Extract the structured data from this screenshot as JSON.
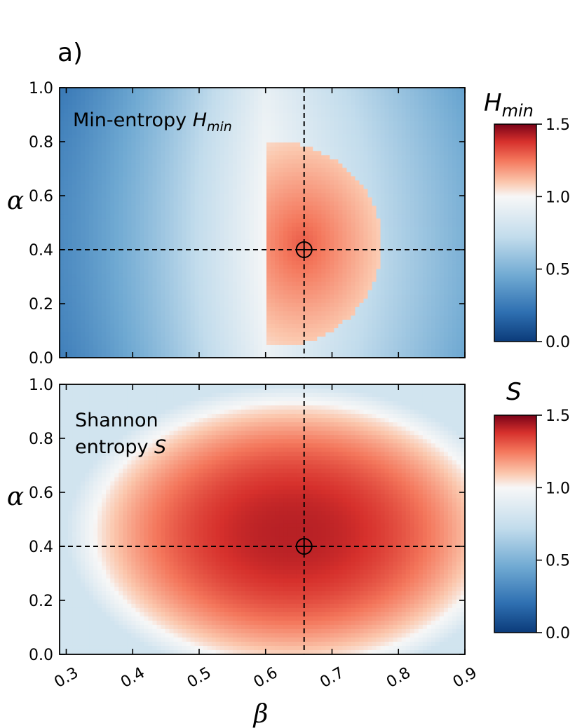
{
  "panel_label": "a)",
  "colorscale": {
    "stops": [
      {
        "v": 0.0,
        "c": "#0b3b7a"
      },
      {
        "v": 0.2,
        "c": "#2e6fb1"
      },
      {
        "v": 0.45,
        "c": "#6fa9d2"
      },
      {
        "v": 0.72,
        "c": "#c2dcec"
      },
      {
        "v": 1.0,
        "c": "#f7f7f7"
      },
      {
        "v": 1.1,
        "c": "#fbc7ad"
      },
      {
        "v": 1.25,
        "c": "#f4775c"
      },
      {
        "v": 1.38,
        "c": "#d6302c"
      },
      {
        "v": 1.5,
        "c": "#7a0218"
      }
    ]
  },
  "chart_data": [
    {
      "type": "heatmap",
      "name": "min-entropy",
      "annotation": {
        "text": "Min-entropy ",
        "symbol": "H",
        "subscript": "min"
      },
      "xlim": [
        0.29,
        0.9
      ],
      "ylim": [
        0.0,
        1.0
      ],
      "xticks": [
        0.3,
        0.4,
        0.5,
        0.6,
        0.7,
        0.8,
        0.9
      ],
      "yticks": [
        0.0,
        0.2,
        0.4,
        0.6,
        0.8,
        1.0
      ],
      "ytick_labels": [
        "0.0",
        "0.2",
        "0.4",
        "0.6",
        "0.8",
        "1.0"
      ],
      "ylabel": "α",
      "vlim": [
        0.0,
        1.5
      ],
      "colorbar_ticks": [
        "0.0",
        "0.5",
        "1.0",
        "1.5"
      ],
      "colorbar_values": [
        0.0,
        0.5,
        1.0,
        1.5
      ],
      "colorbar_label": {
        "symbol": "H",
        "subscript": "min"
      },
      "crosshair": {
        "beta": 0.658,
        "alpha": 0.4
      },
      "approx_values": {
        "left_edge": 0.35,
        "beta_0_6": 0.95,
        "peak_near_marker": 1.3,
        "right_edge": 0.6
      }
    },
    {
      "type": "heatmap",
      "name": "shannon-entropy",
      "annotation": {
        "line1": "Shannon",
        "line2": "entropy ",
        "symbol": "S"
      },
      "xlim": [
        0.29,
        0.9
      ],
      "ylim": [
        0.0,
        1.0
      ],
      "xticks": [
        0.3,
        0.4,
        0.5,
        0.6,
        0.7,
        0.8,
        0.9
      ],
      "xtick_labels": [
        "0.3",
        "0.4",
        "0.5",
        "0.6",
        "0.7",
        "0.8",
        "0.9"
      ],
      "yticks": [
        0.0,
        0.2,
        0.4,
        0.6,
        0.8,
        1.0
      ],
      "ytick_labels": [
        "0.0",
        "0.2",
        "0.4",
        "0.6",
        "0.8",
        "1.0"
      ],
      "xlabel": "β",
      "ylabel": "α",
      "vlim": [
        0.0,
        1.5
      ],
      "colorbar_ticks": [
        "0.0",
        "0.5",
        "1.0",
        "1.5"
      ],
      "colorbar_values": [
        0.0,
        0.5,
        1.0,
        1.5
      ],
      "colorbar_label": {
        "symbol": "S"
      },
      "crosshair": {
        "beta": 0.658,
        "alpha": 0.4
      },
      "approx_values": {
        "peak_near_marker": 1.4,
        "edges": 0.85
      }
    }
  ]
}
